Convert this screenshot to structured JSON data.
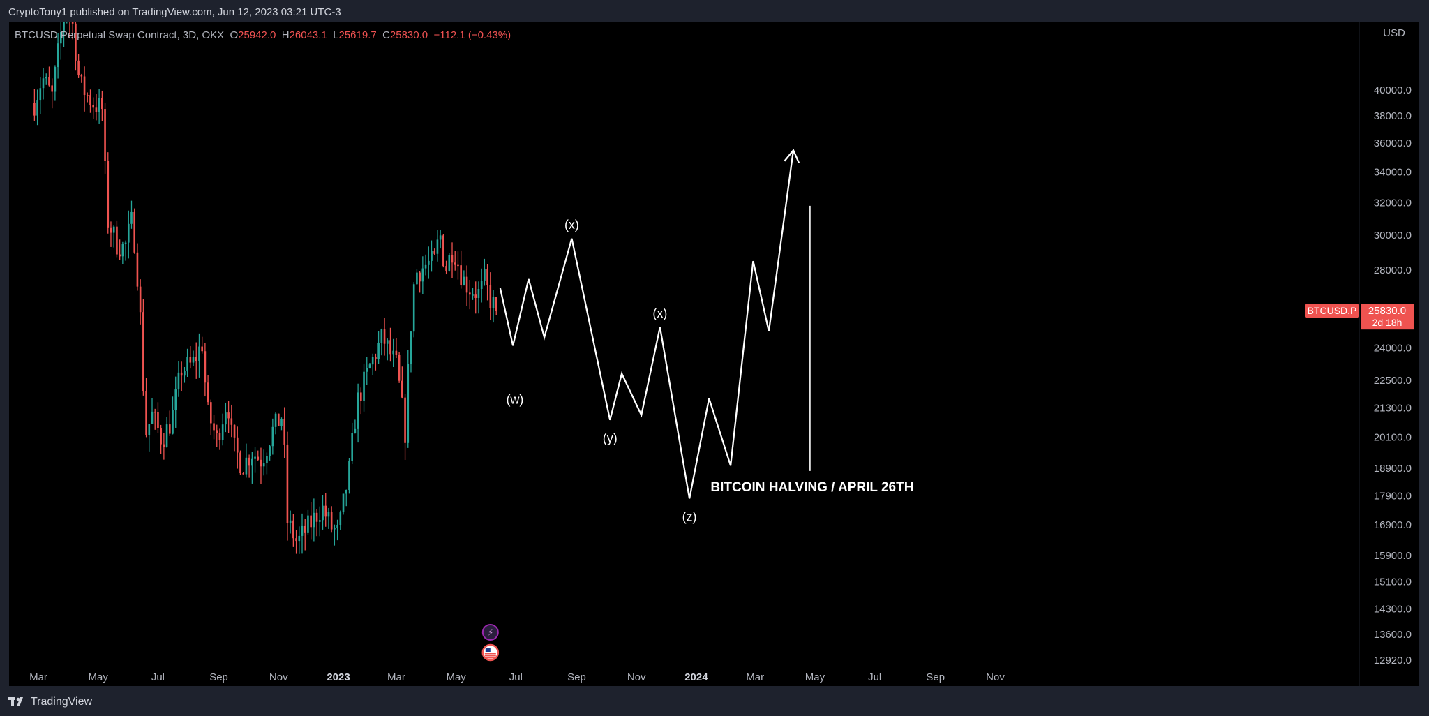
{
  "header": {
    "published": "CryptoTony1 published on TradingView.com, Jun 12, 2023 03:21 UTC-3"
  },
  "legend": {
    "symbol": "BTCUSD Perpetual Swap Contract, 3D, OKX",
    "o_label": "O",
    "o_value": "25942.0",
    "h_label": "H",
    "h_value": "26043.1",
    "l_label": "L",
    "l_value": "25619.7",
    "c_label": "C",
    "c_value": "25830.0",
    "change": "−112.1 (−0.43%)"
  },
  "footer": {
    "brand": "TradingView"
  },
  "colors": {
    "up": "#26a69a",
    "down": "#ef5350",
    "background": "#000000",
    "frame": "#1e222d",
    "text": "#b2b5be",
    "path": "#ffffff"
  },
  "chart_data": {
    "type": "candlestick",
    "currency_label": "USD",
    "price_tag": {
      "symbol": "BTCUSD.P",
      "price": "25830.0",
      "countdown": "2d 18h"
    },
    "y_scale": "log",
    "y_ticks": [
      12920,
      13600,
      14300,
      15100,
      15900,
      16900,
      17900,
      18900,
      20100,
      21300,
      22500,
      24000,
      28000,
      30000,
      32000,
      34000,
      36000,
      38000,
      40000
    ],
    "y_tick_labels": [
      "12920.0",
      "13600.0",
      "14300.0",
      "15100.0",
      "15900.0",
      "16900.0",
      "17900.0",
      "18900.0",
      "20100.0",
      "21300.0",
      "22500.0",
      "24000.0",
      "28000.0",
      "30000.0",
      "32000.0",
      "34000.0",
      "36000.0",
      "38000.0",
      "40000.0"
    ],
    "x_axis": {
      "start": "2022-03-01",
      "end": "2024-11-30",
      "ticks": [
        {
          "date": "2022-03-01",
          "label": "Mar",
          "bold": false
        },
        {
          "date": "2022-05-01",
          "label": "May",
          "bold": false
        },
        {
          "date": "2022-07-01",
          "label": "Jul",
          "bold": false
        },
        {
          "date": "2022-09-01",
          "label": "Sep",
          "bold": false
        },
        {
          "date": "2022-11-01",
          "label": "Nov",
          "bold": false
        },
        {
          "date": "2023-01-01",
          "label": "2023",
          "bold": true
        },
        {
          "date": "2023-03-01",
          "label": "Mar",
          "bold": false
        },
        {
          "date": "2023-05-01",
          "label": "May",
          "bold": false
        },
        {
          "date": "2023-07-01",
          "label": "Jul",
          "bold": false
        },
        {
          "date": "2023-09-01",
          "label": "Sep",
          "bold": false
        },
        {
          "date": "2023-11-01",
          "label": "Nov",
          "bold": false
        },
        {
          "date": "2024-01-01",
          "label": "2024",
          "bold": true
        },
        {
          "date": "2024-03-01",
          "label": "Mar",
          "bold": false
        },
        {
          "date": "2024-05-01",
          "label": "May",
          "bold": false
        },
        {
          "date": "2024-07-01",
          "label": "Jul",
          "bold": false
        },
        {
          "date": "2024-09-01",
          "label": "Sep",
          "bold": false
        },
        {
          "date": "2024-11-01",
          "label": "Nov",
          "bold": false
        }
      ]
    },
    "candles": {
      "start_date": "2022-02-25",
      "interval_days": 3,
      "close_anchors": [
        [
          "2022-02-25",
          39000
        ],
        [
          "2022-03-05",
          41000
        ],
        [
          "2022-03-15",
          39500
        ],
        [
          "2022-03-28",
          47000
        ],
        [
          "2022-04-05",
          45500
        ],
        [
          "2022-04-12",
          40500
        ],
        [
          "2022-04-25",
          39000
        ],
        [
          "2022-05-05",
          38500
        ],
        [
          "2022-05-10",
          31000
        ],
        [
          "2022-05-20",
          29500
        ],
        [
          "2022-05-28",
          29200
        ],
        [
          "2022-06-05",
          31000
        ],
        [
          "2022-06-12",
          26500
        ],
        [
          "2022-06-18",
          20200
        ],
        [
          "2022-06-25",
          21000
        ],
        [
          "2022-07-05",
          20000
        ],
        [
          "2022-07-15",
          20800
        ],
        [
          "2022-07-25",
          23000
        ],
        [
          "2022-08-05",
          23200
        ],
        [
          "2022-08-15",
          24200
        ],
        [
          "2022-08-20",
          21200
        ],
        [
          "2022-08-30",
          20000
        ],
        [
          "2022-09-10",
          21700
        ],
        [
          "2022-09-15",
          19800
        ],
        [
          "2022-09-25",
          19000
        ],
        [
          "2022-10-05",
          19500
        ],
        [
          "2022-10-15",
          19200
        ],
        [
          "2022-10-25",
          20300
        ],
        [
          "2022-11-05",
          21000
        ],
        [
          "2022-11-10",
          17000
        ],
        [
          "2022-11-20",
          16300
        ],
        [
          "2022-12-05",
          17000
        ],
        [
          "2022-12-15",
          17500
        ],
        [
          "2022-12-25",
          16800
        ],
        [
          "2023-01-01",
          16600
        ],
        [
          "2023-01-12",
          18800
        ],
        [
          "2023-01-20",
          21500
        ],
        [
          "2023-02-01",
          23000
        ],
        [
          "2023-02-15",
          24500
        ],
        [
          "2023-02-25",
          23500
        ],
        [
          "2023-03-01",
          23200
        ],
        [
          "2023-03-10",
          20300
        ],
        [
          "2023-03-15",
          24500
        ],
        [
          "2023-03-20",
          27800
        ],
        [
          "2023-04-01",
          28300
        ],
        [
          "2023-04-10",
          28500
        ],
        [
          "2023-04-14",
          30300
        ],
        [
          "2023-04-20",
          28000
        ],
        [
          "2023-04-28",
          29300
        ],
        [
          "2023-05-08",
          27500
        ],
        [
          "2023-05-15",
          27000
        ],
        [
          "2023-05-25",
          26700
        ],
        [
          "2023-05-30",
          27400
        ],
        [
          "2023-06-05",
          26400
        ],
        [
          "2023-06-11",
          25830
        ]
      ]
    },
    "projection_path": [
      [
        "2023-06-15",
        27000
      ],
      [
        "2023-06-28",
        24100
      ],
      [
        "2023-07-14",
        27500
      ],
      [
        "2023-07-30",
        24500
      ],
      [
        "2023-08-27",
        29800
      ],
      [
        "2023-10-05",
        20800
      ],
      [
        "2023-10-17",
        22800
      ],
      [
        "2023-11-06",
        21000
      ],
      [
        "2023-11-25",
        25000
      ],
      [
        "2023-12-25",
        17800
      ],
      [
        "2024-01-14",
        21700
      ],
      [
        "2024-02-05",
        19000
      ],
      [
        "2024-02-28",
        28500
      ],
      [
        "2024-03-15",
        24800
      ],
      [
        "2024-04-09",
        35500
      ]
    ],
    "wave_labels": [
      {
        "text": "(w)",
        "date": "2023-06-30",
        "price": 22450,
        "anchor": "below"
      },
      {
        "text": "(x)",
        "date": "2023-08-27",
        "price": 29800,
        "anchor": "above"
      },
      {
        "text": "(y)",
        "date": "2023-10-05",
        "price": 20800,
        "anchor": "below"
      },
      {
        "text": "(x)",
        "date": "2023-11-25",
        "price": 25000,
        "anchor": "above"
      },
      {
        "text": "(z)",
        "date": "2023-12-25",
        "price": 17800,
        "anchor": "below"
      }
    ],
    "halving": {
      "date": "2024-04-26",
      "price_top": 31800,
      "price_bottom": 18800,
      "label": "BITCOIN HALVING / APRIL 26TH"
    },
    "event_icons": [
      {
        "name": "lightning-icon",
        "glyph": "⚡",
        "date": "2023-06-05"
      },
      {
        "name": "us-flag-icon",
        "glyph": "🇺🇸",
        "date": "2023-06-05"
      }
    ]
  }
}
